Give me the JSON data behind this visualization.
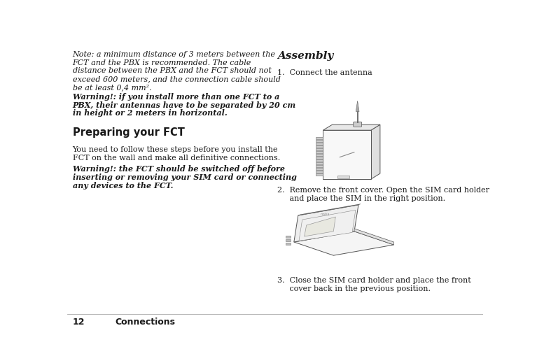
{
  "bg_color": "#ffffff",
  "text_color": "#1a1a1a",
  "page_number": "12",
  "page_label": "Connections",
  "note_text_lines": [
    "Note: a minimum distance of 3 meters between the",
    "FCT and the PBX is recommended. The cable",
    "distance between the PBX and the FCT should not",
    "exceed 600 meters, and the connection cable should",
    "be at least 0,4 mm²."
  ],
  "warn1_lines": [
    "Warning!: if you install more than one FCT to a",
    "PBX, their antennas have to be separated by 20 cm",
    "in height or 2 meters in horizontal."
  ],
  "section_header": "Preparing your FCT",
  "body_lines": [
    "You need to follow these steps before you install the",
    "FCT on the wall and make all definitive connections."
  ],
  "warn2_lines": [
    "Warning!: the FCT should be switched off before",
    "inserting or removing your SIM card or connecting",
    "any devices to the FCT."
  ],
  "assembly_header": "Assembly",
  "step1": "1.  Connect the antenna",
  "step2_lines": [
    "2.  Remove the front cover. Open the SIM card holder",
    "     and place the SIM in the right position."
  ],
  "step3_lines": [
    "3.  Close the SIM card holder and place the front",
    "     cover back in the previous position."
  ]
}
